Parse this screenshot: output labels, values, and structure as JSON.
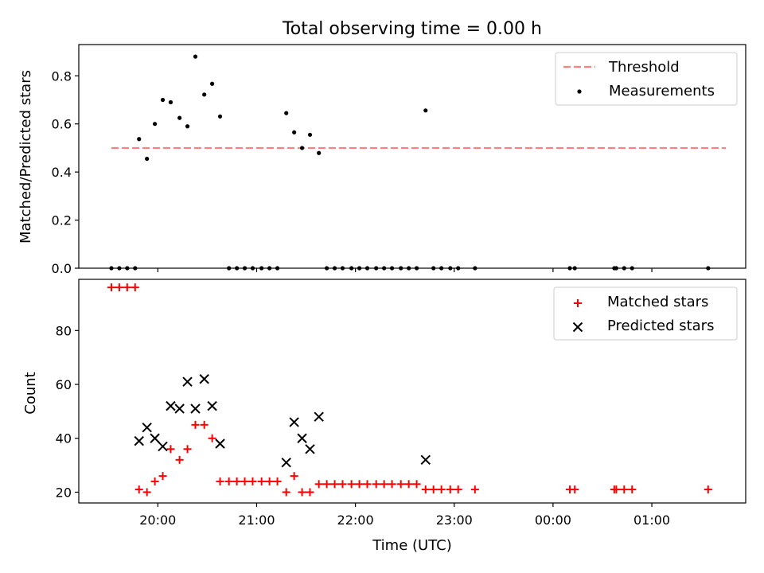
{
  "chart_data": [
    {
      "type": "scatter",
      "title": "Total observing time = 0.00 h",
      "xlabel": "",
      "ylabel": "Matched/Predicted stars",
      "x_unit": "hours since 00:00 UTC (values > 24 are after midnight)",
      "xlim": [
        19.2,
        25.95
      ],
      "ylim": [
        0,
        0.93
      ],
      "yticks": [
        0.0,
        0.2,
        0.4,
        0.6,
        0.8
      ],
      "ytick_labels": [
        "0.0",
        "0.2",
        "0.4",
        "0.6",
        "0.8"
      ],
      "xticks": [
        20,
        21,
        22,
        23,
        24,
        25
      ],
      "legend_position": "top-right",
      "grid": false,
      "threshold": {
        "name": "Threshold",
        "value": 0.5,
        "x": [
          19.53,
          25.75
        ],
        "color": "#ff7f7f",
        "style": "dashed"
      },
      "series": [
        {
          "name": "Measurements",
          "color": "#000000",
          "points": [
            [
              19.53,
              0.0
            ],
            [
              19.61,
              0.0
            ],
            [
              19.69,
              0.0
            ],
            [
              19.77,
              0.0
            ],
            [
              19.81,
              0.537
            ],
            [
              19.89,
              0.455
            ],
            [
              19.97,
              0.6
            ],
            [
              20.05,
              0.7
            ],
            [
              20.13,
              0.69
            ],
            [
              20.22,
              0.625
            ],
            [
              20.3,
              0.59
            ],
            [
              20.38,
              0.88
            ],
            [
              20.47,
              0.722
            ],
            [
              20.55,
              0.767
            ],
            [
              20.63,
              0.631
            ],
            [
              20.72,
              0.0
            ],
            [
              20.8,
              0.0
            ],
            [
              20.88,
              0.0
            ],
            [
              20.96,
              0.0
            ],
            [
              21.05,
              0.0
            ],
            [
              21.13,
              0.0
            ],
            [
              21.21,
              0.0
            ],
            [
              21.3,
              0.645
            ],
            [
              21.38,
              0.565
            ],
            [
              21.46,
              0.5
            ],
            [
              21.54,
              0.555
            ],
            [
              21.63,
              0.479
            ],
            [
              21.71,
              0.0
            ],
            [
              21.79,
              0.0
            ],
            [
              21.87,
              0.0
            ],
            [
              21.96,
              0.0
            ],
            [
              22.04,
              0.0
            ],
            [
              22.12,
              0.0
            ],
            [
              22.21,
              0.0
            ],
            [
              22.29,
              0.0
            ],
            [
              22.37,
              0.0
            ],
            [
              22.46,
              0.0
            ],
            [
              22.54,
              0.0
            ],
            [
              22.62,
              0.0
            ],
            [
              22.71,
              0.656
            ],
            [
              22.79,
              0.0
            ],
            [
              22.87,
              0.0
            ],
            [
              22.96,
              0.0
            ],
            [
              23.04,
              0.0
            ],
            [
              23.21,
              0.0
            ],
            [
              24.17,
              0.0
            ],
            [
              24.22,
              0.0
            ],
            [
              24.62,
              0.0
            ],
            [
              24.64,
              0.0
            ],
            [
              24.72,
              0.0
            ],
            [
              24.8,
              0.0
            ],
            [
              25.57,
              0.0
            ]
          ]
        }
      ]
    },
    {
      "type": "scatter",
      "title": "",
      "xlabel": "Time (UTC)",
      "ylabel": "Count",
      "x_unit": "hours since 00:00 UTC (values > 24 are after midnight)",
      "xlim": [
        19.2,
        25.95
      ],
      "ylim": [
        16,
        99
      ],
      "yticks": [
        20,
        40,
        60,
        80
      ],
      "ytick_labels": [
        "20",
        "40",
        "60",
        "80"
      ],
      "xticks": [
        20,
        21,
        22,
        23,
        24,
        25
      ],
      "xtick_labels": [
        "20:00",
        "21:00",
        "22:00",
        "23:00",
        "00:00",
        "01:00"
      ],
      "legend_position": "top-right",
      "grid": false,
      "series": [
        {
          "name": "Matched stars",
          "marker": "plus",
          "color": "#ff0000",
          "points": [
            [
              19.53,
              96
            ],
            [
              19.61,
              96
            ],
            [
              19.69,
              96
            ],
            [
              19.77,
              96
            ],
            [
              19.81,
              21
            ],
            [
              19.89,
              20
            ],
            [
              19.97,
              24
            ],
            [
              20.05,
              26
            ],
            [
              20.13,
              36
            ],
            [
              20.22,
              32
            ],
            [
              20.3,
              36
            ],
            [
              20.38,
              45
            ],
            [
              20.47,
              45
            ],
            [
              20.55,
              40
            ],
            [
              20.63,
              24
            ],
            [
              20.72,
              24
            ],
            [
              20.8,
              24
            ],
            [
              20.88,
              24
            ],
            [
              20.96,
              24
            ],
            [
              21.05,
              24
            ],
            [
              21.13,
              24
            ],
            [
              21.21,
              24
            ],
            [
              21.3,
              20
            ],
            [
              21.38,
              26
            ],
            [
              21.46,
              20
            ],
            [
              21.54,
              20
            ],
            [
              21.63,
              23
            ],
            [
              21.71,
              23
            ],
            [
              21.79,
              23
            ],
            [
              21.87,
              23
            ],
            [
              21.96,
              23
            ],
            [
              22.04,
              23
            ],
            [
              22.12,
              23
            ],
            [
              22.21,
              23
            ],
            [
              22.29,
              23
            ],
            [
              22.37,
              23
            ],
            [
              22.46,
              23
            ],
            [
              22.54,
              23
            ],
            [
              22.62,
              23
            ],
            [
              22.71,
              21
            ],
            [
              22.79,
              21
            ],
            [
              22.87,
              21
            ],
            [
              22.96,
              21
            ],
            [
              23.04,
              21
            ],
            [
              23.21,
              21
            ],
            [
              24.17,
              21
            ],
            [
              24.22,
              21
            ],
            [
              24.62,
              21
            ],
            [
              24.64,
              21
            ],
            [
              24.72,
              21
            ],
            [
              24.8,
              21
            ],
            [
              25.57,
              21
            ]
          ]
        },
        {
          "name": "Predicted stars",
          "marker": "x",
          "color": "#000000",
          "points": [
            [
              19.81,
              39
            ],
            [
              19.89,
              44
            ],
            [
              19.97,
              40
            ],
            [
              20.05,
              37
            ],
            [
              20.13,
              52
            ],
            [
              20.22,
              51
            ],
            [
              20.3,
              61
            ],
            [
              20.38,
              51
            ],
            [
              20.47,
              62
            ],
            [
              20.55,
              52
            ],
            [
              20.63,
              38
            ],
            [
              21.3,
              31
            ],
            [
              21.38,
              46
            ],
            [
              21.46,
              40
            ],
            [
              21.54,
              36
            ],
            [
              21.63,
              48
            ],
            [
              22.71,
              32
            ]
          ]
        }
      ]
    }
  ]
}
